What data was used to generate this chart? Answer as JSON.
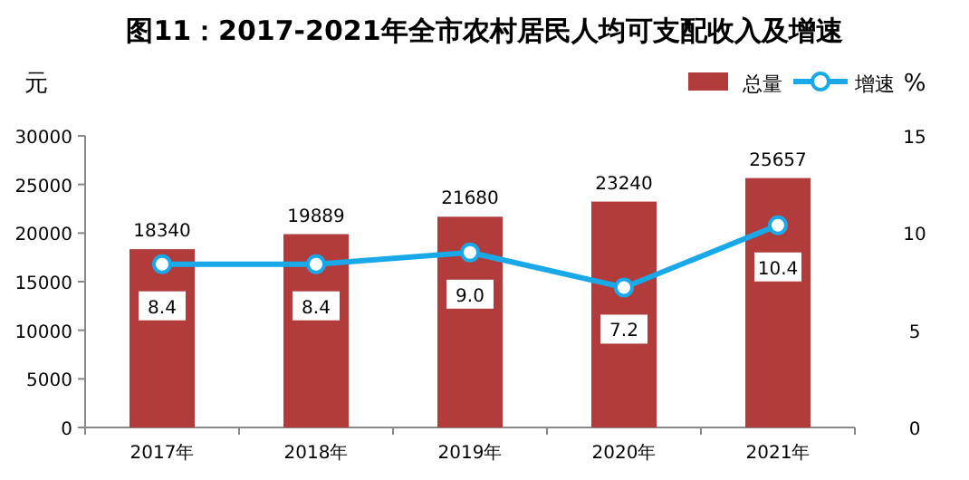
{
  "chart_data": {
    "type": "bar",
    "title": "图11：2017-2021年全市农村居民人均可支配收入及增速",
    "ylabel": "元",
    "y2label": "%",
    "categories": [
      "2017年",
      "2018年",
      "2019年",
      "2020年",
      "2021年"
    ],
    "series": [
      {
        "name": "总量",
        "color": "#b23b3b",
        "values": [
          18340,
          19889,
          21680,
          23240,
          25657
        ],
        "value_labels": [
          "18340",
          "19889",
          "21680",
          "23240",
          "25657"
        ]
      },
      {
        "name": "增速",
        "type": "line",
        "axis": "y2",
        "color": "#1aa9e8",
        "values": [
          8.4,
          8.4,
          9.0,
          7.2,
          10.4
        ],
        "value_labels": [
          "8.4",
          "8.4",
          "9.0",
          "7.2",
          "10.4"
        ]
      }
    ],
    "ylim": [
      0,
      30000
    ],
    "yticks": [
      0,
      5000,
      10000,
      15000,
      20000,
      25000,
      30000
    ],
    "y2lim": [
      0,
      15
    ],
    "y2ticks": [
      0,
      5,
      10,
      15
    ],
    "marker": "circle",
    "legend": "top right",
    "grid": false
  }
}
